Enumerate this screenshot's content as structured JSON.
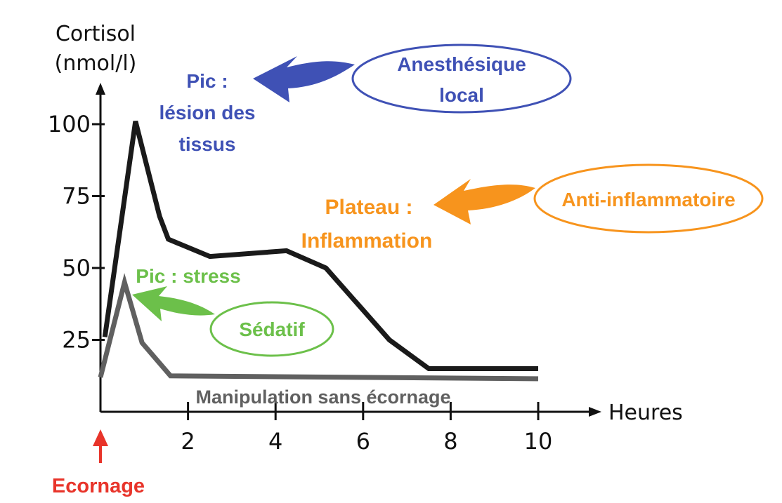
{
  "chart_data": {
    "type": "line",
    "ylabel_line1": "Cortisol",
    "ylabel_line2": "(nmol/l)",
    "xlabel": "Heures",
    "xlim": [
      0,
      11
    ],
    "ylim": [
      0,
      110
    ],
    "x_ticks": [
      2,
      4,
      6,
      8,
      10
    ],
    "y_ticks": [
      25,
      50,
      75,
      100
    ],
    "grid": false,
    "series": [
      {
        "name": "",
        "color": "#1a1a1a",
        "points": [
          [
            0.1,
            26
          ],
          [
            0.8,
            101
          ],
          [
            1.35,
            68
          ],
          [
            1.55,
            60
          ],
          [
            2.5,
            54
          ],
          [
            4.25,
            56
          ],
          [
            5.15,
            50
          ],
          [
            6.6,
            25
          ],
          [
            7.5,
            15
          ],
          [
            10,
            15
          ]
        ]
      },
      {
        "name": "Manipulation sans écornage",
        "color": "#606060",
        "points": [
          [
            0,
            12
          ],
          [
            0.55,
            45
          ],
          [
            0.95,
            24
          ],
          [
            1.6,
            12.5
          ],
          [
            10,
            11.5
          ]
        ]
      }
    ],
    "event_marker": {
      "label": "Ecornage",
      "x": 0,
      "color": "#e8342a"
    },
    "annotations": [
      {
        "key": "peak",
        "line1": "Pic :",
        "line2": "lésion des",
        "line3": "tissus",
        "color": "#3f51b5"
      },
      {
        "key": "plateau",
        "line1": "Plateau :",
        "line2": "Inflammation",
        "color": "#f7941d"
      },
      {
        "key": "stress",
        "line1": "Pic : stress",
        "color": "#6cc04a"
      }
    ],
    "treatments": [
      {
        "key": "anesthesique",
        "line1": "Anesthésique",
        "line2": "local",
        "color": "#3f51b5"
      },
      {
        "key": "anti",
        "line1": "Anti-inflammatoire",
        "color": "#f7941d"
      },
      {
        "key": "sedatif",
        "line1": "Sédatif",
        "color": "#6cc04a"
      }
    ]
  }
}
